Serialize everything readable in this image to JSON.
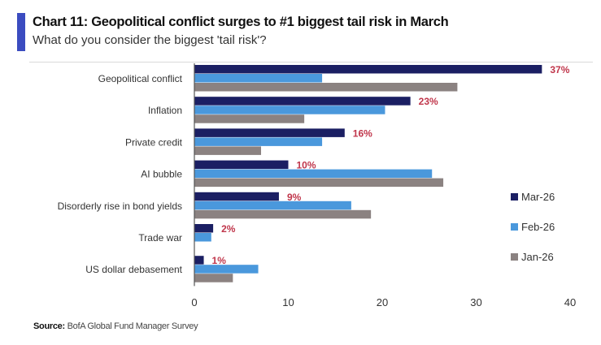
{
  "header": {
    "title": "Chart 11: Geopolitical conflict surges to #1 biggest tail risk in March",
    "subtitle": "What do you consider the biggest 'tail risk'?"
  },
  "footer": {
    "source_label": "Source:",
    "source_text": " BofA Global Fund Manager Survey"
  },
  "chart_data": {
    "type": "bar",
    "orientation": "horizontal",
    "title": "Chart 11: Geopolitical conflict surges to #1 biggest tail risk in March",
    "subtitle": "What do you consider the biggest 'tail risk'?",
    "xlabel": "",
    "ylabel": "",
    "xlim": [
      0,
      40
    ],
    "xticks": [
      0,
      10,
      20,
      30,
      40
    ],
    "grid": false,
    "legend_position": "right",
    "categories": [
      "Geopolitical conflict",
      "Inflation",
      "Private credit",
      "AI bubble",
      "Disorderly rise in bond yields",
      "Trade war",
      "US dollar debasement"
    ],
    "series": [
      {
        "name": "Mar-26",
        "color": "#1b1f63",
        "values": [
          37,
          23,
          16,
          10,
          9,
          2,
          1
        ]
      },
      {
        "name": "Feb-26",
        "color": "#4a98dc",
        "values": [
          13.6,
          20.3,
          13.6,
          25.3,
          16.7,
          1.8,
          6.8
        ]
      },
      {
        "name": "Jan-26",
        "color": "#8b8281",
        "values": [
          28.0,
          11.7,
          7.1,
          26.5,
          18.8,
          0,
          4.1
        ]
      }
    ],
    "data_labels": {
      "series": "Mar-26",
      "color": "#c0364b",
      "labels": [
        "37%",
        "23%",
        "16%",
        "10%",
        "9%",
        "2%",
        "1%"
      ]
    }
  }
}
